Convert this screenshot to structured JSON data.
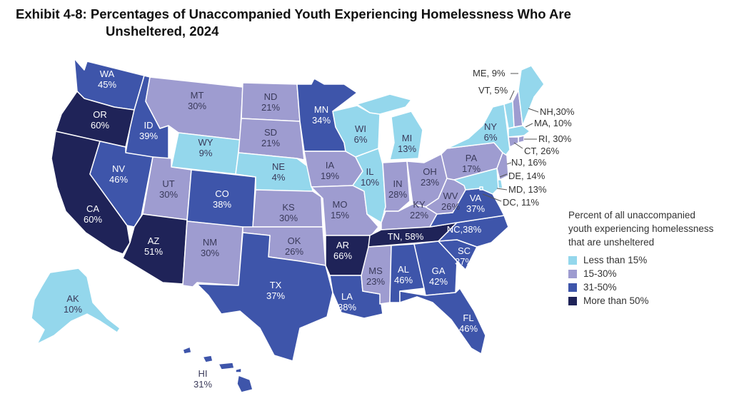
{
  "title": {
    "line1": "Exhibit 4-8: Percentages of Unaccompanied Youth Experiencing Homelessness Who Are",
    "line2": "Unsheltered, 2024"
  },
  "colors": {
    "lt15": "#94d7ec",
    "r15_30": "#9e9cd0",
    "r31_50": "#3e55aa",
    "gt50": "#1f2358",
    "border": "#ffffff"
  },
  "legend": {
    "title_lines": [
      "Percent of all unaccompanied",
      "youth experiencing homelessness",
      "that are unsheltered"
    ],
    "items": [
      {
        "label": "Less than 15%",
        "color": "#94d7ec"
      },
      {
        "label": "15-30%",
        "color": "#9e9cd0"
      },
      {
        "label": "31-50%",
        "color": "#3e55aa"
      },
      {
        "label": "More than 50%",
        "color": "#1f2358"
      }
    ]
  },
  "states": {
    "WA": {
      "label": "WA",
      "value": "45%",
      "cat": "r31_50"
    },
    "OR": {
      "label": "OR",
      "value": "60%",
      "cat": "gt50"
    },
    "CA": {
      "label": "CA",
      "value": "60%",
      "cat": "gt50"
    },
    "ID": {
      "label": "ID",
      "value": "39%",
      "cat": "r31_50"
    },
    "NV": {
      "label": "NV",
      "value": "46%",
      "cat": "r31_50"
    },
    "MT": {
      "label": "MT",
      "value": "30%",
      "cat": "r15_30"
    },
    "WY": {
      "label": "WY",
      "value": "9%",
      "cat": "lt15"
    },
    "UT": {
      "label": "UT",
      "value": "30%",
      "cat": "r15_30"
    },
    "AZ": {
      "label": "AZ",
      "value": "51%",
      "cat": "gt50"
    },
    "CO": {
      "label": "CO",
      "value": "38%",
      "cat": "r31_50"
    },
    "NM": {
      "label": "NM",
      "value": "30%",
      "cat": "r15_30"
    },
    "ND": {
      "label": "ND",
      "value": "21%",
      "cat": "r15_30"
    },
    "SD": {
      "label": "SD",
      "value": "21%",
      "cat": "r15_30"
    },
    "NE": {
      "label": "NE",
      "value": "4%",
      "cat": "lt15"
    },
    "KS": {
      "label": "KS",
      "value": "30%",
      "cat": "r15_30"
    },
    "OK": {
      "label": "OK",
      "value": "26%",
      "cat": "r15_30"
    },
    "TX": {
      "label": "TX",
      "value": "37%",
      "cat": "r31_50"
    },
    "MN": {
      "label": "MN",
      "value": "34%",
      "cat": "r31_50"
    },
    "IA": {
      "label": "IA",
      "value": "19%",
      "cat": "r15_30"
    },
    "MO": {
      "label": "MO",
      "value": "15%",
      "cat": "r15_30"
    },
    "AR": {
      "label": "AR",
      "value": "66%",
      "cat": "gt50"
    },
    "LA": {
      "label": "LA",
      "value": "38%",
      "cat": "r31_50"
    },
    "WI": {
      "label": "WI",
      "value": "6%",
      "cat": "lt15"
    },
    "IL": {
      "label": "IL",
      "value": "10%",
      "cat": "lt15"
    },
    "MI": {
      "label": "MI",
      "value": "13%",
      "cat": "lt15"
    },
    "IN": {
      "label": "IN",
      "value": "28%",
      "cat": "r15_30"
    },
    "OH": {
      "label": "OH",
      "value": "23%",
      "cat": "r15_30"
    },
    "KY": {
      "label": "KY",
      "value": "22%",
      "cat": "r15_30"
    },
    "TN": {
      "label": "TN, 58%",
      "value": "",
      "cat": "gt50"
    },
    "MS": {
      "label": "MS",
      "value": "23%",
      "cat": "r15_30"
    },
    "AL": {
      "label": "AL",
      "value": "46%",
      "cat": "r31_50"
    },
    "GA": {
      "label": "GA",
      "value": "42%",
      "cat": "r31_50"
    },
    "FL": {
      "label": "FL",
      "value": "46%",
      "cat": "r31_50"
    },
    "SC": {
      "label": "SC",
      "value": "37%",
      "cat": "r31_50"
    },
    "NC": {
      "label": "NC,38%",
      "value": "",
      "cat": "r31_50"
    },
    "VA": {
      "label": "VA",
      "value": "37%",
      "cat": "r31_50"
    },
    "WV": {
      "label": "WV",
      "value": "26%",
      "cat": "r15_30"
    },
    "PA": {
      "label": "PA",
      "value": "17%",
      "cat": "r15_30"
    },
    "NY": {
      "label": "NY",
      "value": "6%",
      "cat": "lt15"
    },
    "AK": {
      "label": "AK",
      "value": "10%",
      "cat": "lt15"
    },
    "HI": {
      "label": "HI",
      "value": "31%",
      "cat": "r31_50"
    },
    "ME": {
      "label": "ME, 9%",
      "cat": "lt15"
    },
    "VT": {
      "label": "VT, 5%",
      "cat": "lt15"
    },
    "NH": {
      "label": "NH,30%",
      "cat": "r15_30"
    },
    "MA": {
      "label": "MA, 10%",
      "cat": "lt15"
    },
    "RI": {
      "label": "RI, 30%",
      "cat": "r15_30"
    },
    "CT": {
      "label": "CT, 26%",
      "cat": "r15_30"
    },
    "NJ": {
      "label": "NJ, 16%",
      "cat": "r15_30"
    },
    "DE": {
      "label": "DE, 14%",
      "cat": "lt15"
    },
    "MD": {
      "label": "MD, 13%",
      "cat": "lt15"
    },
    "DC": {
      "label": "DC, 11%",
      "cat": "lt15"
    }
  }
}
